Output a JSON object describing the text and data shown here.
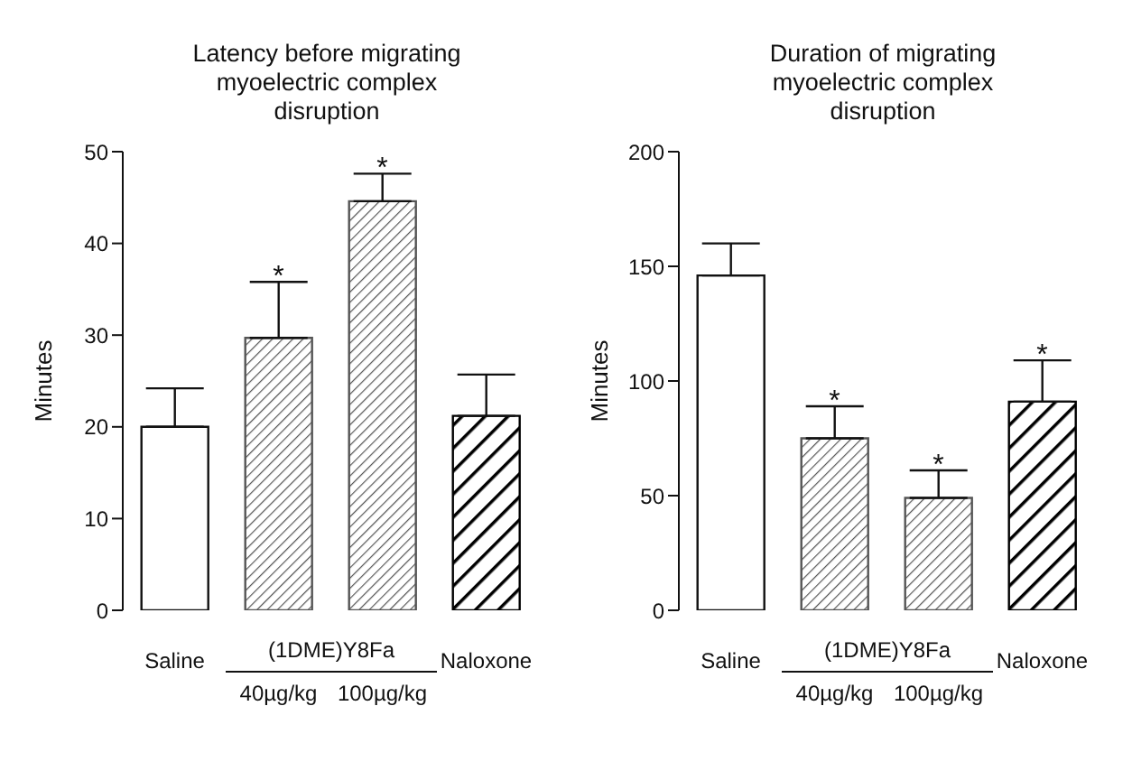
{
  "chart_data": [
    {
      "type": "bar",
      "title": "Latency before migrating myoelectric complex disruption",
      "ylabel": "Minutes",
      "categories": [
        "Saline",
        "40µg/kg",
        "100µg/kg",
        "Naloxone"
      ],
      "values": [
        20.0,
        29.7,
        44.6,
        21.2
      ],
      "errors": [
        [
          20.0,
          24.2
        ],
        [
          29.7,
          35.8
        ],
        [
          44.6,
          47.6
        ],
        [
          21.2,
          25.7
        ]
      ],
      "colors": [
        "#ffffff",
        "#555555",
        "#555555",
        "#000000"
      ],
      "ylim": [
        0,
        50
      ],
      "yticks": [
        0,
        10,
        20,
        30,
        40,
        50
      ],
      "grid": false,
      "legend": false,
      "annotations": [
        "(1DME)Y8Fa",
        {
          "text": "*",
          "x": "40µg/kg",
          "y": 35.8
        },
        {
          "text": "*",
          "x": "100µg/kg",
          "y": 47.6
        }
      ]
    },
    {
      "type": "bar",
      "title": "Duration of migrating myoelectric complex disruption",
      "ylabel": "Minutes",
      "categories": [
        "Saline",
        "40µg/kg",
        "100µg/kg",
        "Naloxone"
      ],
      "values": [
        146,
        75,
        49,
        91
      ],
      "errors": [
        [
          146,
          160
        ],
        [
          75,
          89
        ],
        [
          49,
          61
        ],
        [
          91,
          109
        ]
      ],
      "colors": [
        "#ffffff",
        "#555555",
        "#555555",
        "#000000"
      ],
      "ylim": [
        0,
        200
      ],
      "yticks": [
        0,
        50,
        100,
        150,
        200
      ],
      "grid": false,
      "legend": false,
      "annotations": [
        "(1DME)Y8Fa",
        {
          "text": "*",
          "x": "40µg/kg",
          "y": 89
        },
        {
          "text": "*",
          "x": "100µg/kg",
          "y": 61
        },
        {
          "text": "*",
          "x": "Naloxone",
          "y": 109
        }
      ]
    }
  ]
}
